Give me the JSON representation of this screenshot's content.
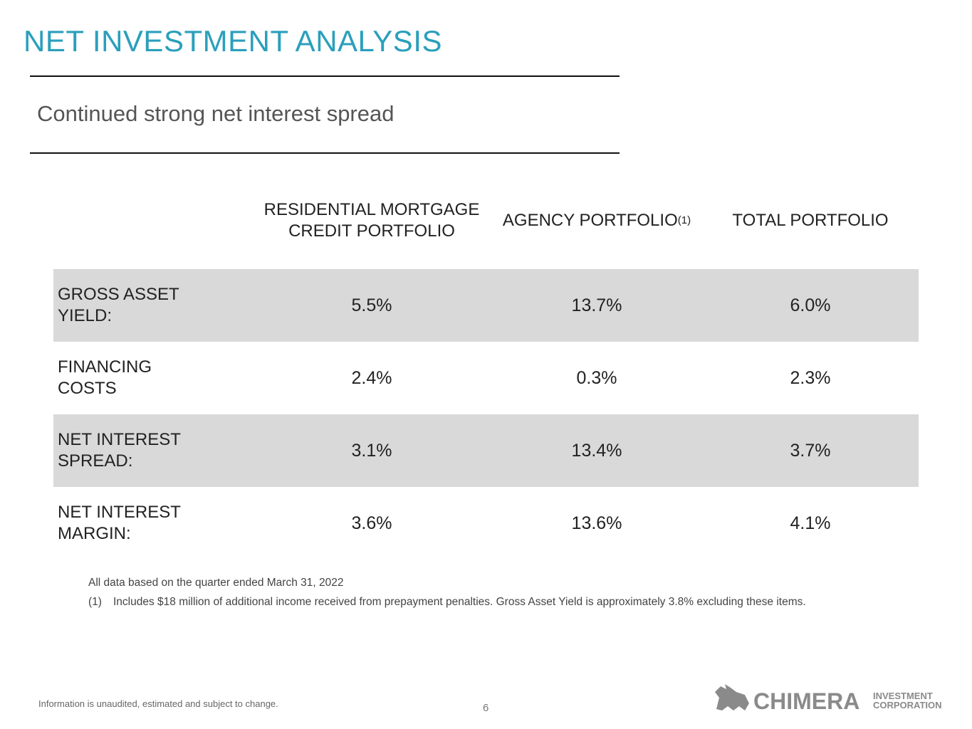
{
  "title": "NET INVESTMENT ANALYSIS",
  "subtitle": "Continued strong net interest spread",
  "table": {
    "columns": [
      {
        "label": "RESIDENTIAL MORTGAGE CREDIT PORTFOLIO"
      },
      {
        "label": "AGENCY PORTFOLIO",
        "note": "(1)"
      },
      {
        "label": "TOTAL PORTFOLIO"
      }
    ],
    "rows": [
      {
        "label": "GROSS ASSET YIELD:",
        "values": [
          "5.5%",
          "13.7%",
          "6.0%"
        ]
      },
      {
        "label": "FINANCING COSTS",
        "values": [
          "2.4%",
          "0.3%",
          "2.3%"
        ]
      },
      {
        "label": "NET INTEREST SPREAD:",
        "values": [
          "3.1%",
          "13.4%",
          "3.7%"
        ]
      },
      {
        "label": "NET INTEREST MARGIN:",
        "values": [
          "3.6%",
          "13.6%",
          "4.1%"
        ]
      }
    ]
  },
  "footnotes": {
    "basis": "All data based on the quarter ended March 31, 2022",
    "notes": [
      {
        "marker": "(1)",
        "text": "Includes $18 million of additional income received from prepayment penalties. Gross Asset Yield is approximately 3.8% excluding these items."
      }
    ]
  },
  "footer": {
    "disclaimer": "Information is unaudited, estimated and subject to change.",
    "page": "6",
    "logo": {
      "name": "CHIMERA",
      "line1": "INVESTMENT",
      "line2": "CORPORATION"
    }
  }
}
